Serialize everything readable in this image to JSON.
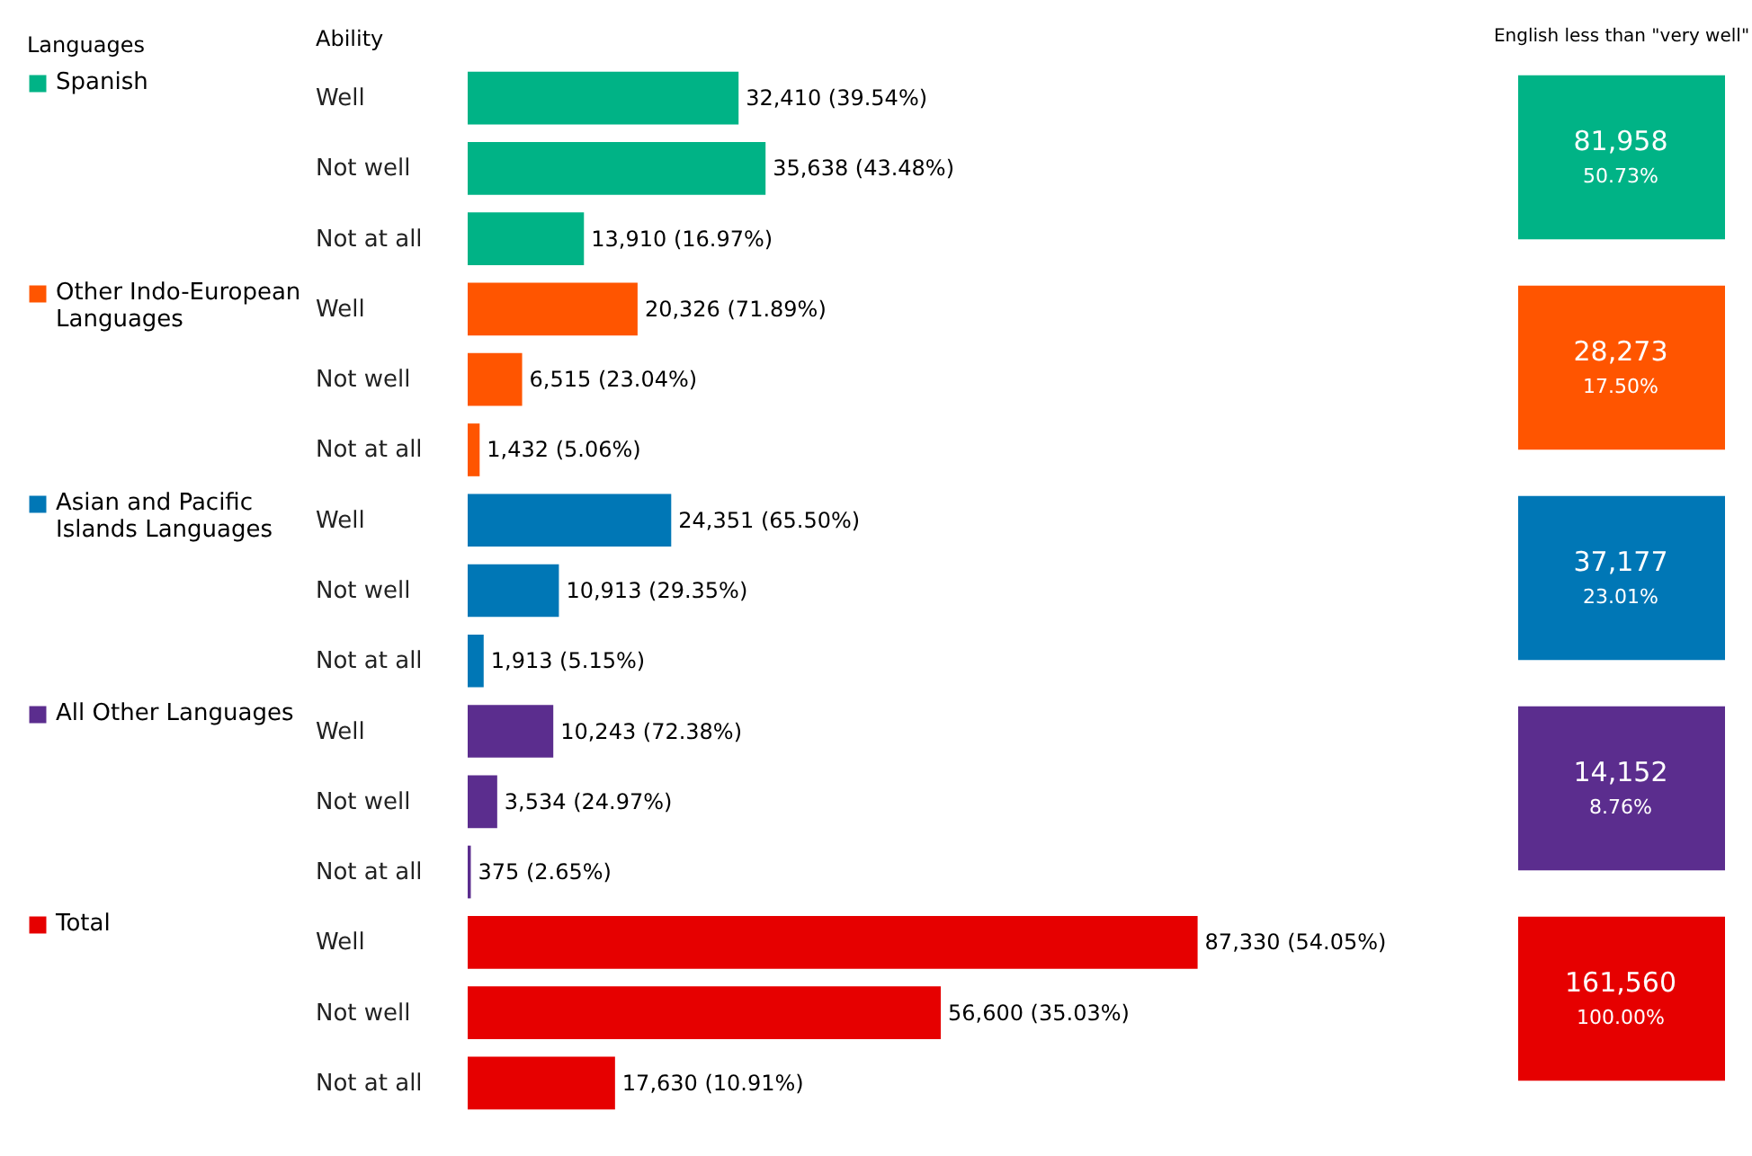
{
  "chart_data": [
    {
      "type": "bar",
      "orientation": "horizontal",
      "legend": "left",
      "legend_title": "Languages",
      "ylabel": "Ability",
      "categories": [
        "Well",
        "Not well",
        "Not at all",
        "Well",
        "Not well",
        "Not at all",
        "Well",
        "Not well",
        "Not at all",
        "Well",
        "Not well",
        "Not at all",
        "Well",
        "Not well",
        "Not at all"
      ],
      "series": [
        {
          "name": "Spanish",
          "color": "#00b386",
          "values": [
            32410,
            35638,
            13910,
            null,
            null,
            null,
            null,
            null,
            null,
            null,
            null,
            null,
            null,
            null,
            null
          ],
          "value_labels": [
            "32,410 (39.54%)",
            "35,638 (43.48%)",
            "13,910 (16.97%)",
            null,
            null,
            null,
            null,
            null,
            null,
            null,
            null,
            null,
            null,
            null,
            null
          ]
        },
        {
          "name": "Other Indo-European Languages",
          "color": "#ff5500",
          "values": [
            null,
            null,
            null,
            20326,
            6515,
            1432,
            null,
            null,
            null,
            null,
            null,
            null,
            null,
            null,
            null
          ],
          "value_labels": [
            null,
            null,
            null,
            "20,326 (71.89%)",
            "6,515 (23.04%)",
            "1,432 (5.06%)",
            null,
            null,
            null,
            null,
            null,
            null,
            null,
            null,
            null
          ]
        },
        {
          "name": "Asian and Pacific Islands Languages",
          "color": "#0077b6",
          "values": [
            null,
            null,
            null,
            null,
            null,
            null,
            24351,
            10913,
            1913,
            null,
            null,
            null,
            null,
            null,
            null
          ],
          "value_labels": [
            null,
            null,
            null,
            null,
            null,
            null,
            "24,351 (65.50%)",
            "10,913 (29.35%)",
            "1,913 (5.15%)",
            null,
            null,
            null,
            null,
            null,
            null
          ]
        },
        {
          "name": "All Other Languages",
          "color": "#5b2d8e",
          "values": [
            null,
            null,
            null,
            null,
            null,
            null,
            null,
            null,
            null,
            10243,
            3534,
            375,
            null,
            null,
            null
          ],
          "value_labels": [
            null,
            null,
            null,
            null,
            null,
            null,
            null,
            null,
            null,
            "10,243 (72.38%)",
            "3,534 (24.97%)",
            "375 (2.65%)",
            null,
            null,
            null
          ]
        },
        {
          "name": "Total",
          "color": "#e60000",
          "values": [
            null,
            null,
            null,
            null,
            null,
            null,
            null,
            null,
            null,
            null,
            null,
            null,
            87330,
            56600,
            17630
          ],
          "value_labels": [
            null,
            null,
            null,
            null,
            null,
            null,
            null,
            null,
            null,
            null,
            null,
            null,
            "87,330 (54.05%)",
            "56,600 (35.03%)",
            "17,630 (10.91%)"
          ]
        }
      ]
    },
    {
      "type": "other",
      "title": "English less than \"very well\"",
      "colors": [
        "#00b386",
        "#ff5500",
        "#0077b6",
        "#5b2d8e",
        "#e60000"
      ],
      "annotations": [
        "81,958",
        "50.73%",
        "28,273",
        "17.50%",
        "37,177",
        "23.01%",
        "14,152",
        "8.76%",
        "161,560",
        "100.00%"
      ]
    }
  ]
}
